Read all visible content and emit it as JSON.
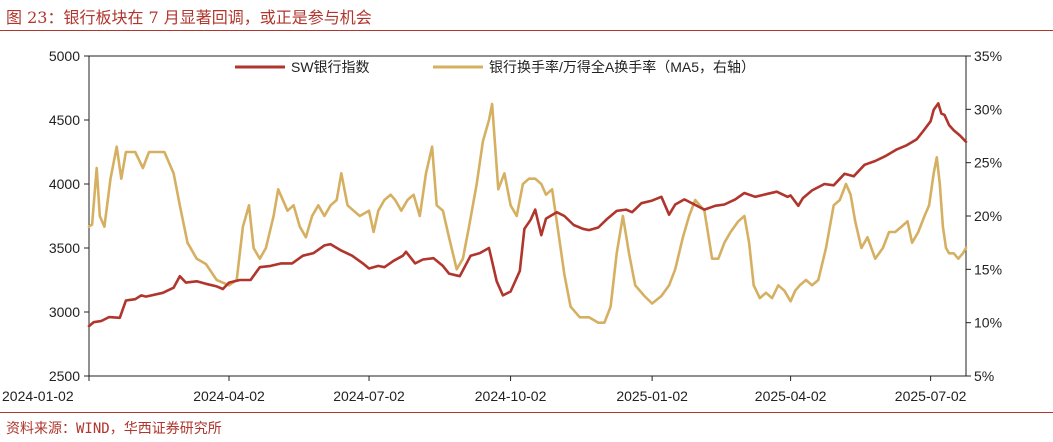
{
  "header": {
    "title": "图 23：银行板块在 7 月显著回调，或正是参与机会"
  },
  "footer": {
    "source": "资料来源：WIND，华西证券研究所"
  },
  "chart_data": {
    "type": "line",
    "left_axis": {
      "min": 2500,
      "max": 5000,
      "ticks": [
        "5000",
        "4500",
        "4000",
        "3500",
        "3000",
        "2500"
      ]
    },
    "right_axis": {
      "min": 5,
      "max": 35,
      "ticks": [
        "35%",
        "30%",
        "25%",
        "20%",
        "15%",
        "10%",
        "5%"
      ]
    },
    "x_range": [
      "2024-01-02",
      "2025-07-25"
    ],
    "x_ticks": [
      "2024-01-02",
      "2024-04-02",
      "2024-07-02",
      "2024-10-02",
      "2025-01-02",
      "2025-04-02",
      "2025-07-02"
    ],
    "legend_position": "top",
    "series": [
      {
        "name": "SW银行指数",
        "axis": "left",
        "color": "#b0352c",
        "points": [
          [
            "2024-01-02",
            2890
          ],
          [
            "2024-01-05",
            2920
          ],
          [
            "2024-01-10",
            2930
          ],
          [
            "2024-01-15",
            2960
          ],
          [
            "2024-01-22",
            2955
          ],
          [
            "2024-01-26",
            3090
          ],
          [
            "2024-02-01",
            3100
          ],
          [
            "2024-02-05",
            3130
          ],
          [
            "2024-02-08",
            3120
          ],
          [
            "2024-02-19",
            3150
          ],
          [
            "2024-02-26",
            3190
          ],
          [
            "2024-03-01",
            3280
          ],
          [
            "2024-03-05",
            3230
          ],
          [
            "2024-03-12",
            3240
          ],
          [
            "2024-03-18",
            3220
          ],
          [
            "2024-03-25",
            3200
          ],
          [
            "2024-03-29",
            3180
          ],
          [
            "2024-04-02",
            3230
          ],
          [
            "2024-04-09",
            3250
          ],
          [
            "2024-04-16",
            3250
          ],
          [
            "2024-04-22",
            3350
          ],
          [
            "2024-04-29",
            3360
          ],
          [
            "2024-05-06",
            3380
          ],
          [
            "2024-05-13",
            3380
          ],
          [
            "2024-05-20",
            3440
          ],
          [
            "2024-05-27",
            3460
          ],
          [
            "2024-06-03",
            3520
          ],
          [
            "2024-06-07",
            3530
          ],
          [
            "2024-06-14",
            3480
          ],
          [
            "2024-06-21",
            3440
          ],
          [
            "2024-06-28",
            3380
          ],
          [
            "2024-07-02",
            3340
          ],
          [
            "2024-07-08",
            3360
          ],
          [
            "2024-07-12",
            3350
          ],
          [
            "2024-07-18",
            3400
          ],
          [
            "2024-07-24",
            3440
          ],
          [
            "2024-07-26",
            3470
          ],
          [
            "2024-08-01",
            3380
          ],
          [
            "2024-08-06",
            3410
          ],
          [
            "2024-08-13",
            3420
          ],
          [
            "2024-08-19",
            3360
          ],
          [
            "2024-08-23",
            3300
          ],
          [
            "2024-08-30",
            3280
          ],
          [
            "2024-09-06",
            3440
          ],
          [
            "2024-09-12",
            3460
          ],
          [
            "2024-09-18",
            3500
          ],
          [
            "2024-09-23",
            3240
          ],
          [
            "2024-09-27",
            3130
          ],
          [
            "2024-10-02",
            3160
          ],
          [
            "2024-10-08",
            3320
          ],
          [
            "2024-10-11",
            3650
          ],
          [
            "2024-10-15",
            3720
          ],
          [
            "2024-10-18",
            3800
          ],
          [
            "2024-10-22",
            3600
          ],
          [
            "2024-10-25",
            3730
          ],
          [
            "2024-11-01",
            3780
          ],
          [
            "2024-11-06",
            3750
          ],
          [
            "2024-11-12",
            3680
          ],
          [
            "2024-11-18",
            3650
          ],
          [
            "2024-11-22",
            3640
          ],
          [
            "2024-11-28",
            3660
          ],
          [
            "2024-12-04",
            3730
          ],
          [
            "2024-12-10",
            3790
          ],
          [
            "2024-12-16",
            3800
          ],
          [
            "2024-12-20",
            3780
          ],
          [
            "2024-12-26",
            3850
          ],
          [
            "2025-01-02",
            3870
          ],
          [
            "2025-01-08",
            3900
          ],
          [
            "2025-01-13",
            3760
          ],
          [
            "2025-01-17",
            3840
          ],
          [
            "2025-01-23",
            3880
          ],
          [
            "2025-02-05",
            3800
          ],
          [
            "2025-02-12",
            3830
          ],
          [
            "2025-02-18",
            3840
          ],
          [
            "2025-02-25",
            3880
          ],
          [
            "2025-03-03",
            3930
          ],
          [
            "2025-03-10",
            3900
          ],
          [
            "2025-03-17",
            3920
          ],
          [
            "2025-03-24",
            3940
          ],
          [
            "2025-03-31",
            3900
          ],
          [
            "2025-04-02",
            3910
          ],
          [
            "2025-04-07",
            3830
          ],
          [
            "2025-04-10",
            3890
          ],
          [
            "2025-04-16",
            3950
          ],
          [
            "2025-04-24",
            4000
          ],
          [
            "2025-04-30",
            3990
          ],
          [
            "2025-05-07",
            4080
          ],
          [
            "2025-05-13",
            4060
          ],
          [
            "2025-05-20",
            4150
          ],
          [
            "2025-05-27",
            4180
          ],
          [
            "2025-06-03",
            4220
          ],
          [
            "2025-06-10",
            4270
          ],
          [
            "2025-06-16",
            4300
          ],
          [
            "2025-06-23",
            4350
          ],
          [
            "2025-06-27",
            4410
          ],
          [
            "2025-07-02",
            4490
          ],
          [
            "2025-07-04",
            4580
          ],
          [
            "2025-07-07",
            4630
          ],
          [
            "2025-07-09",
            4550
          ],
          [
            "2025-07-11",
            4540
          ],
          [
            "2025-07-14",
            4460
          ],
          [
            "2025-07-17",
            4420
          ],
          [
            "2025-07-21",
            4380
          ],
          [
            "2025-07-25",
            4330
          ]
        ]
      },
      {
        "name": "银行换手率/万得全A换手率（MA5，右轴）",
        "axis": "right",
        "color": "#d6b062",
        "points": [
          [
            "2024-01-02",
            19.0
          ],
          [
            "2024-01-04",
            19.2
          ],
          [
            "2024-01-07",
            24.5
          ],
          [
            "2024-01-09",
            20.0
          ],
          [
            "2024-01-12",
            19.0
          ],
          [
            "2024-01-16",
            23.5
          ],
          [
            "2024-01-20",
            26.5
          ],
          [
            "2024-01-23",
            23.5
          ],
          [
            "2024-01-26",
            26.0
          ],
          [
            "2024-02-01",
            26.0
          ],
          [
            "2024-02-06",
            24.5
          ],
          [
            "2024-02-10",
            26.0
          ],
          [
            "2024-02-20",
            26.0
          ],
          [
            "2024-02-26",
            24.0
          ],
          [
            "2024-03-01",
            21.0
          ],
          [
            "2024-03-06",
            17.5
          ],
          [
            "2024-03-12",
            16.0
          ],
          [
            "2024-03-18",
            15.5
          ],
          [
            "2024-03-25",
            14.0
          ],
          [
            "2024-04-02",
            13.5
          ],
          [
            "2024-04-07",
            14.0
          ],
          [
            "2024-04-11",
            19.0
          ],
          [
            "2024-04-15",
            21.0
          ],
          [
            "2024-04-18",
            17.0
          ],
          [
            "2024-04-22",
            16.0
          ],
          [
            "2024-04-26",
            17.0
          ],
          [
            "2024-05-01",
            20.0
          ],
          [
            "2024-05-04",
            22.5
          ],
          [
            "2024-05-10",
            20.5
          ],
          [
            "2024-05-14",
            21.0
          ],
          [
            "2024-05-18",
            19.0
          ],
          [
            "2024-05-22",
            18.0
          ],
          [
            "2024-05-26",
            20.0
          ],
          [
            "2024-05-30",
            21.0
          ],
          [
            "2024-06-03",
            20.0
          ],
          [
            "2024-06-07",
            21.0
          ],
          [
            "2024-06-11",
            21.5
          ],
          [
            "2024-06-14",
            24.0
          ],
          [
            "2024-06-18",
            21.0
          ],
          [
            "2024-06-22",
            20.5
          ],
          [
            "2024-06-26",
            20.0
          ],
          [
            "2024-07-02",
            20.5
          ],
          [
            "2024-07-05",
            18.5
          ],
          [
            "2024-07-08",
            20.5
          ],
          [
            "2024-07-12",
            21.5
          ],
          [
            "2024-07-16",
            22.0
          ],
          [
            "2024-07-19",
            21.5
          ],
          [
            "2024-07-23",
            20.5
          ],
          [
            "2024-07-27",
            21.5
          ],
          [
            "2024-07-31",
            22.0
          ],
          [
            "2024-08-04",
            20.0
          ],
          [
            "2024-08-08",
            24.0
          ],
          [
            "2024-08-12",
            26.5
          ],
          [
            "2024-08-15",
            21.0
          ],
          [
            "2024-08-19",
            20.5
          ],
          [
            "2024-08-23",
            18.0
          ],
          [
            "2024-08-28",
            15.0
          ],
          [
            "2024-09-01",
            16.0
          ],
          [
            "2024-09-05",
            19.0
          ],
          [
            "2024-09-10",
            23.0
          ],
          [
            "2024-09-14",
            27.0
          ],
          [
            "2024-09-18",
            29.0
          ],
          [
            "2024-09-20",
            30.5
          ],
          [
            "2024-09-24",
            22.5
          ],
          [
            "2024-09-28",
            24.0
          ],
          [
            "2024-10-02",
            21.0
          ],
          [
            "2024-10-06",
            20.0
          ],
          [
            "2024-10-10",
            23.0
          ],
          [
            "2024-10-14",
            23.5
          ],
          [
            "2024-10-18",
            23.5
          ],
          [
            "2024-10-22",
            23.0
          ],
          [
            "2024-10-25",
            22.0
          ],
          [
            "2024-10-29",
            22.5
          ],
          [
            "2024-11-02",
            18.5
          ],
          [
            "2024-11-06",
            14.5
          ],
          [
            "2024-11-10",
            11.5
          ],
          [
            "2024-11-16",
            10.5
          ],
          [
            "2024-11-22",
            10.5
          ],
          [
            "2024-11-28",
            10.0
          ],
          [
            "2024-12-02",
            10.0
          ],
          [
            "2024-12-06",
            11.5
          ],
          [
            "2024-12-10",
            16.5
          ],
          [
            "2024-12-14",
            20.0
          ],
          [
            "2024-12-18",
            16.5
          ],
          [
            "2024-12-22",
            13.5
          ],
          [
            "2024-12-28",
            12.5
          ],
          [
            "2025-01-02",
            11.8
          ],
          [
            "2025-01-08",
            12.5
          ],
          [
            "2025-01-13",
            13.5
          ],
          [
            "2025-01-17",
            15.0
          ],
          [
            "2025-01-22",
            18.0
          ],
          [
            "2025-01-26",
            20.0
          ],
          [
            "2025-01-30",
            21.5
          ],
          [
            "2025-02-05",
            20.5
          ],
          [
            "2025-02-10",
            16.0
          ],
          [
            "2025-02-14",
            16.0
          ],
          [
            "2025-02-18",
            17.5
          ],
          [
            "2025-02-22",
            18.5
          ],
          [
            "2025-02-27",
            19.5
          ],
          [
            "2025-03-03",
            20.0
          ],
          [
            "2025-03-06",
            17.5
          ],
          [
            "2025-03-09",
            13.5
          ],
          [
            "2025-03-13",
            12.3
          ],
          [
            "2025-03-17",
            12.8
          ],
          [
            "2025-03-21",
            12.3
          ],
          [
            "2025-03-25",
            13.5
          ],
          [
            "2025-03-29",
            13.0
          ],
          [
            "2025-04-02",
            12.0
          ],
          [
            "2025-04-05",
            13.0
          ],
          [
            "2025-04-08",
            13.5
          ],
          [
            "2025-04-12",
            14.0
          ],
          [
            "2025-04-16",
            13.5
          ],
          [
            "2025-04-20",
            14.0
          ],
          [
            "2025-04-25",
            17.0
          ],
          [
            "2025-04-30",
            21.0
          ],
          [
            "2025-05-04",
            21.5
          ],
          [
            "2025-05-08",
            23.0
          ],
          [
            "2025-05-11",
            22.0
          ],
          [
            "2025-05-14",
            19.5
          ],
          [
            "2025-05-18",
            17.0
          ],
          [
            "2025-05-22",
            18.0
          ],
          [
            "2025-05-27",
            16.0
          ],
          [
            "2025-06-01",
            17.0
          ],
          [
            "2025-06-05",
            18.5
          ],
          [
            "2025-06-09",
            18.5
          ],
          [
            "2025-06-13",
            19.0
          ],
          [
            "2025-06-17",
            19.5
          ],
          [
            "2025-06-20",
            17.5
          ],
          [
            "2025-06-24",
            18.5
          ],
          [
            "2025-06-28",
            20.0
          ],
          [
            "2025-07-01",
            21.0
          ],
          [
            "2025-07-04",
            24.0
          ],
          [
            "2025-07-06",
            25.5
          ],
          [
            "2025-07-08",
            23.0
          ],
          [
            "2025-07-10",
            19.0
          ],
          [
            "2025-07-12",
            17.0
          ],
          [
            "2025-07-14",
            16.5
          ],
          [
            "2025-07-17",
            16.5
          ],
          [
            "2025-07-20",
            16.0
          ],
          [
            "2025-07-23",
            16.5
          ],
          [
            "2025-07-25",
            17.0
          ]
        ]
      }
    ]
  }
}
